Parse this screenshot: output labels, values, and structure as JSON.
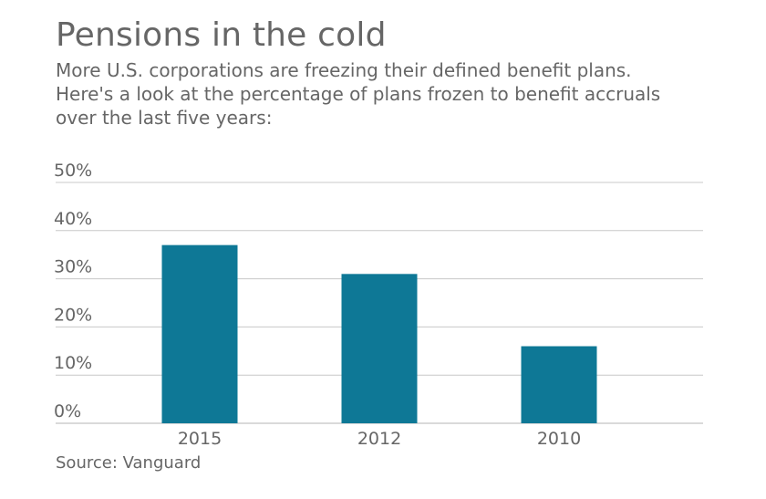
{
  "title": "Pensions in the cold",
  "subtitle": "More U.S. corporations are freezing their defined benefit plans. Here's a look at the percentage of plans frozen to benefit accruals over the last five years:",
  "source": "Source: Vanguard",
  "colors": {
    "bar": "#0e7896",
    "grid": "#c8c8c8",
    "text": "#666666"
  },
  "chart_data": {
    "type": "bar",
    "categories": [
      "2015",
      "2012",
      "2010"
    ],
    "values": [
      37,
      31,
      16
    ],
    "ylim": [
      0,
      50
    ],
    "yticks": [
      0,
      10,
      20,
      30,
      40,
      50
    ],
    "ytick_labels": [
      "0%",
      "10%",
      "20%",
      "30%",
      "40%",
      "50%"
    ],
    "grid": true,
    "legend": "none"
  }
}
